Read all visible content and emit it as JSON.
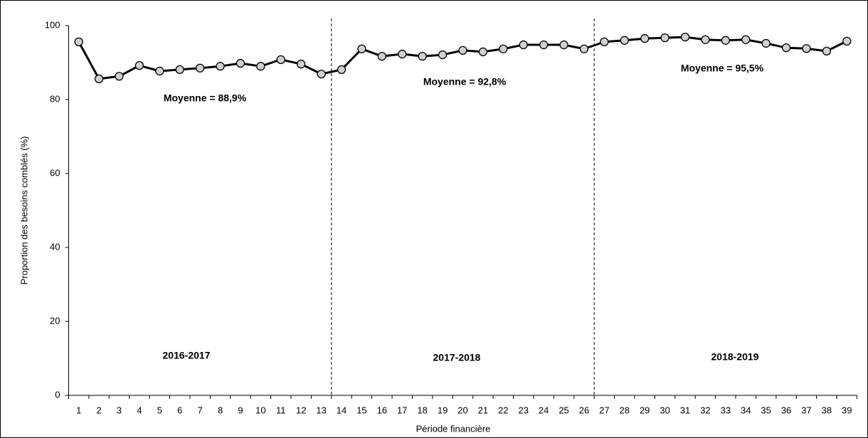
{
  "chart_data": {
    "type": "line",
    "x_label": "Période financière",
    "y_label": "Proportion des besoins comblés (%)",
    "categories": [
      "1",
      "2",
      "3",
      "4",
      "5",
      "6",
      "7",
      "8",
      "9",
      "10",
      "11",
      "12",
      "13",
      "14",
      "15",
      "16",
      "17",
      "18",
      "19",
      "20",
      "21",
      "22",
      "23",
      "24",
      "25",
      "26",
      "27",
      "28",
      "29",
      "30",
      "31",
      "32",
      "33",
      "34",
      "35",
      "36",
      "37",
      "38",
      "39"
    ],
    "series": [
      {
        "color": "#000000",
        "marker_fill": "#d0d0d0",
        "values": [
          95.6,
          85.6,
          86.3,
          89.2,
          87.7,
          88.1,
          88.5,
          89.0,
          89.8,
          89.0,
          90.8,
          89.6,
          86.9,
          88.1,
          93.7,
          91.7,
          92.3,
          91.7,
          92.1,
          93.3,
          92.9,
          93.7,
          94.8,
          94.8,
          94.8,
          93.7,
          95.6,
          96.0,
          96.5,
          96.7,
          96.9,
          96.2,
          96.0,
          96.2,
          95.2,
          94.0,
          93.8,
          93.1,
          95.8
        ]
      }
    ],
    "ylim": [
      0,
      100
    ],
    "yticks": [
      0,
      20,
      40,
      60,
      80,
      100
    ],
    "annotations": [
      "Moyenne = 88,9%",
      "Moyenne = 92,8%",
      "Moyenne = 95,5%",
      "2016-2017",
      "2017-2018",
      "2018-2019"
    ]
  }
}
